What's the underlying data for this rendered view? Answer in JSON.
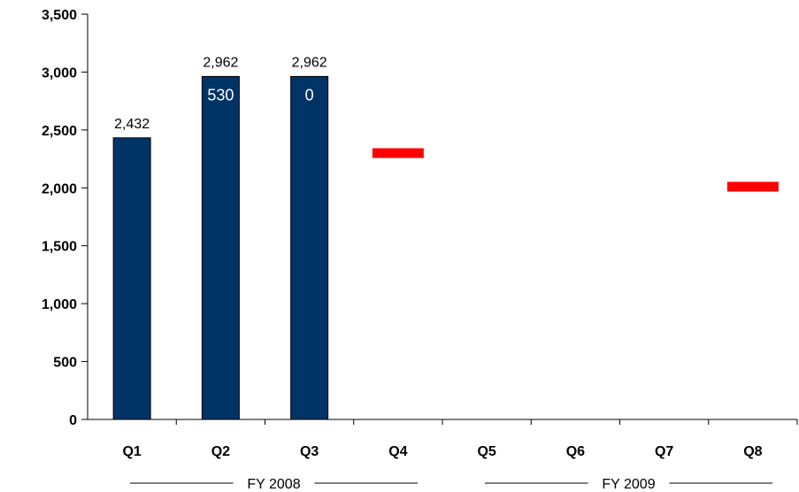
{
  "chart_data": {
    "type": "bar",
    "title": "",
    "xlabel": "",
    "ylabel": "",
    "ylim": [
      0,
      3500
    ],
    "yticks": [
      0,
      500,
      1000,
      1500,
      2000,
      2500,
      3000,
      3500
    ],
    "ytick_labels": [
      "0",
      "500",
      "1,000",
      "1,500",
      "2,000",
      "2,500",
      "3,000",
      "3,500"
    ],
    "grid": false,
    "legend": "none",
    "categories": [
      "Q1",
      "Q2",
      "Q3",
      "Q4",
      "Q5",
      "Q6",
      "Q7",
      "Q8"
    ],
    "series": [
      {
        "type": "bar",
        "color": "#003366",
        "values": [
          2432,
          2962,
          2962,
          null,
          null,
          null,
          null,
          null
        ],
        "labels": [
          "2,432",
          "2,962",
          "2,962",
          "",
          "",
          "",
          "",
          ""
        ],
        "inner_labels": [
          "",
          "530",
          "0",
          "",
          "",
          "",
          "",
          ""
        ]
      },
      {
        "type": "marker",
        "color": "#ff0000",
        "values": [
          null,
          null,
          null,
          2300,
          null,
          null,
          null,
          2010
        ]
      }
    ],
    "groups": [
      {
        "label": "FY 2008",
        "categories": [
          "Q1",
          "Q2",
          "Q3",
          "Q4"
        ]
      },
      {
        "label": "FY 2009",
        "categories": [
          "Q5",
          "Q6",
          "Q7",
          "Q8"
        ]
      }
    ]
  }
}
